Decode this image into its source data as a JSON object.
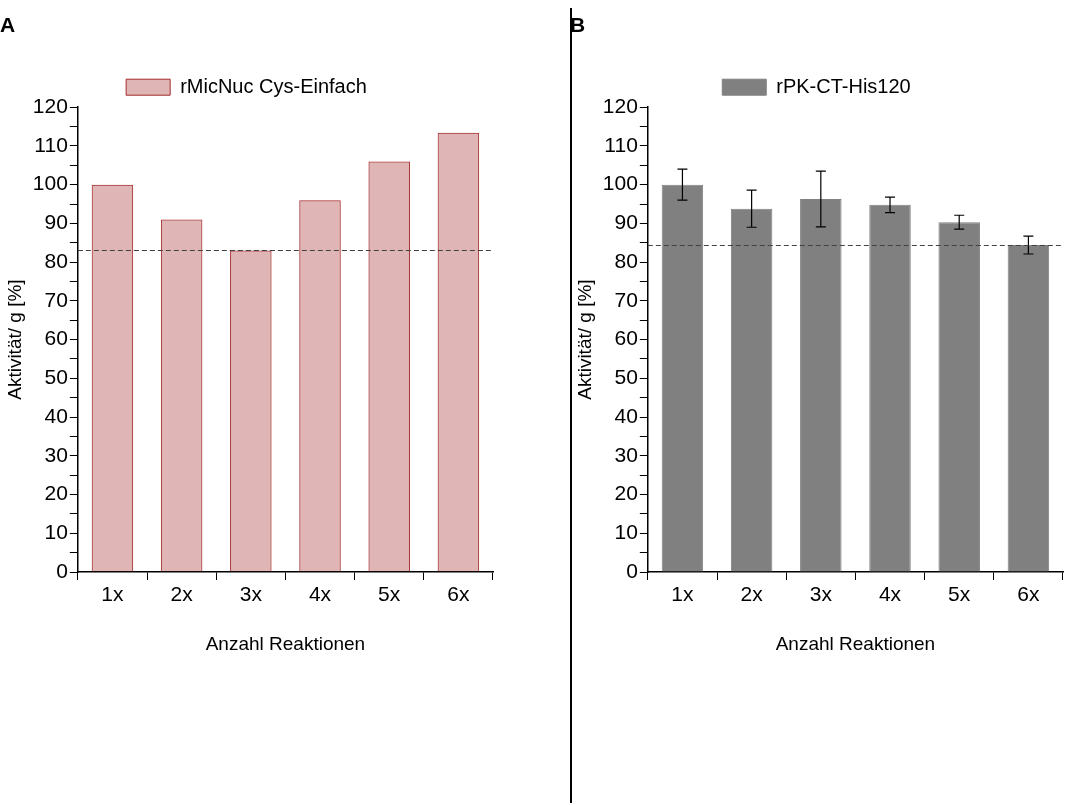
{
  "chart_data": [
    {
      "type": "bar",
      "title": "A",
      "xlabel": "Anzahl Reaktionen",
      "ylabel": "Aktivität/ g [%]",
      "categories": [
        "1x",
        "2x",
        "3x",
        "4x",
        "5x",
        "6x"
      ],
      "series": [
        {
          "name": "rMicNuc Cys-Einfach",
          "color": "#a52a2a",
          "values": [
            100,
            91,
            83,
            96,
            106,
            113.4
          ]
        }
      ],
      "ylim": [
        0,
        120
      ],
      "yticks": [
        0,
        {
          "value": 5,
          "label": null
        },
        10,
        {
          "value": 15,
          "label": null
        },
        20,
        {
          "value": 25,
          "label": null
        },
        30,
        {
          "value": 35,
          "label": null
        },
        40,
        {
          "value": 45,
          "label": null
        },
        50,
        {
          "value": 55,
          "label": null
        },
        60,
        {
          "value": 65,
          "label": null
        },
        70,
        {
          "value": 75,
          "label": null
        },
        80,
        {
          "value": 85,
          "label": null
        },
        90,
        {
          "value": 95,
          "label": null
        },
        100,
        {
          "value": 105,
          "label": null
        },
        110,
        {
          "value": 115,
          "label": null
        },
        120
      ],
      "ref_lines": [
        {
          "axis": "y",
          "value": 83,
          "line_style": "dashed",
          "color": "#404040"
        }
      ],
      "legend": "top",
      "grid": false
    },
    {
      "type": "bar",
      "title": "B",
      "xlabel": "Anzahl Reaktionen",
      "ylabel": "Aktivität/ g [%]",
      "categories": [
        "1x",
        "2x",
        "3x",
        "4x",
        "5x",
        "6x"
      ],
      "series": [
        {
          "name": "rPK-CT-His120",
          "color": "#808080",
          "values": [
            100,
            93.8,
            96.3,
            94.8,
            90.3,
            84.4
          ],
          "errors": [
            4,
            4.8,
            7.2,
            2,
            1.8,
            2.3
          ]
        }
      ],
      "ylim": [
        0,
        120
      ],
      "yticks": [
        0,
        {
          "value": 5,
          "label": null
        },
        10,
        {
          "value": 15,
          "label": null
        },
        20,
        {
          "value": 25,
          "label": null
        },
        30,
        {
          "value": 35,
          "label": null
        },
        40,
        {
          "value": 45,
          "label": null
        },
        50,
        {
          "value": 55,
          "label": null
        },
        60,
        {
          "value": 65,
          "label": null
        },
        70,
        {
          "value": 75,
          "label": null
        },
        80,
        {
          "value": 85,
          "label": null
        },
        90,
        {
          "value": 95,
          "label": null
        },
        100,
        {
          "value": 105,
          "label": null
        },
        110,
        {
          "value": 115,
          "label": null
        },
        120
      ],
      "ref_lines": [
        {
          "axis": "y",
          "value": 84.3,
          "line_style": "dashed",
          "color": "#404040"
        }
      ],
      "legend": "top",
      "grid": false
    }
  ]
}
